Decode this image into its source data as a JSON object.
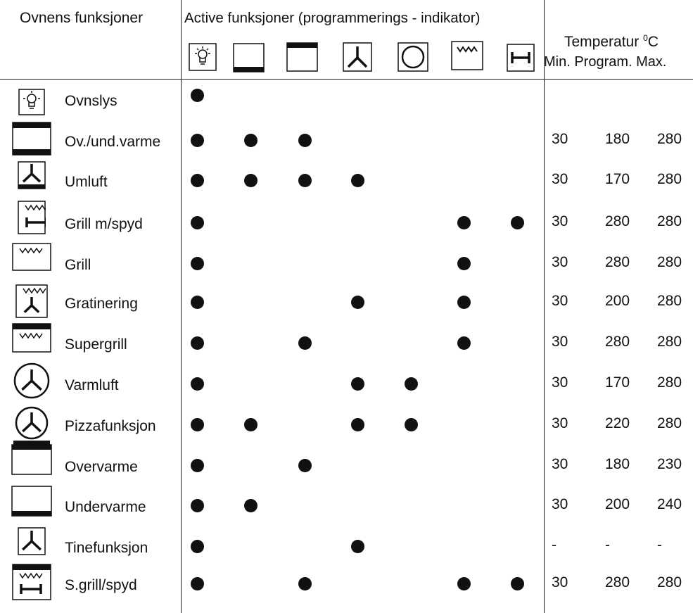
{
  "header": {
    "functions_title": "Ovnens funksjoner",
    "active_title": "Active funksjoner (programmerings - indikator)",
    "temp_title": "Temperatur",
    "temp_sup": "0",
    "temp_unit": "C",
    "temp_cols": "Min. Program. Max."
  },
  "indicator_icons": [
    "light-icon",
    "bottom-heat-icon",
    "top-heat-icon",
    "fan-icon",
    "ring-heater-icon",
    "grill-icon",
    "spit-icon"
  ],
  "rows": [
    {
      "icon": "light-icon",
      "name": "Ovnslys",
      "dots": [
        1,
        0,
        0,
        0,
        0,
        0,
        0
      ],
      "min": "",
      "prog": "",
      "max": ""
    },
    {
      "icon": "top-bottom-heat-icon",
      "name": "Ov./und.varme",
      "dots": [
        1,
        1,
        1,
        0,
        0,
        0,
        0
      ],
      "min": "30",
      "prog": "180",
      "max": "280"
    },
    {
      "icon": "fan-bottom-icon",
      "name": "Umluft",
      "dots": [
        1,
        1,
        1,
        1,
        0,
        0,
        0
      ],
      "min": "30",
      "prog": "170",
      "max": "280"
    },
    {
      "icon": "grill-spit-icon",
      "name": "Grill m/spyd",
      "dots": [
        1,
        0,
        0,
        0,
        0,
        1,
        1
      ],
      "min": "30",
      "prog": "280",
      "max": "280"
    },
    {
      "icon": "grill-icon",
      "name": "Grill",
      "dots": [
        1,
        0,
        0,
        0,
        0,
        1,
        0
      ],
      "min": "30",
      "prog": "280",
      "max": "280"
    },
    {
      "icon": "grill-fan-icon",
      "name": "Gratinering",
      "dots": [
        1,
        0,
        0,
        1,
        0,
        1,
        0
      ],
      "min": "30",
      "prog": "200",
      "max": "280"
    },
    {
      "icon": "supergrill-icon",
      "name": "Supergrill",
      "dots": [
        1,
        0,
        1,
        0,
        0,
        1,
        0
      ],
      "min": "30",
      "prog": "280",
      "max": "280"
    },
    {
      "icon": "hot-air-icon",
      "name": "Varmluft",
      "dots": [
        1,
        0,
        0,
        1,
        1,
        0,
        0
      ],
      "min": "30",
      "prog": "170",
      "max": "280"
    },
    {
      "icon": "pizza-icon",
      "name": "Pizzafunksjon",
      "dots": [
        1,
        1,
        0,
        1,
        1,
        0,
        0
      ],
      "min": "30",
      "prog": "220",
      "max": "280"
    },
    {
      "icon": "top-heat-icon",
      "name": "Overvarme",
      "dots": [
        1,
        0,
        1,
        0,
        0,
        0,
        0
      ],
      "min": "30",
      "prog": "180",
      "max": "230"
    },
    {
      "icon": "bottom-heat-icon",
      "name": "Undervarme",
      "dots": [
        1,
        1,
        0,
        0,
        0,
        0,
        0
      ],
      "min": "30",
      "prog": "200",
      "max": "240"
    },
    {
      "icon": "defrost-icon",
      "name": "Tinefunksjon",
      "dots": [
        1,
        0,
        0,
        1,
        0,
        0,
        0
      ],
      "min": "-",
      "prog": "-",
      "max": "-"
    },
    {
      "icon": "supergrill-spit-icon",
      "name": "S.grill/spyd",
      "dots": [
        1,
        0,
        1,
        0,
        0,
        1,
        1
      ],
      "min": "30",
      "prog": "280",
      "max": "280"
    }
  ]
}
